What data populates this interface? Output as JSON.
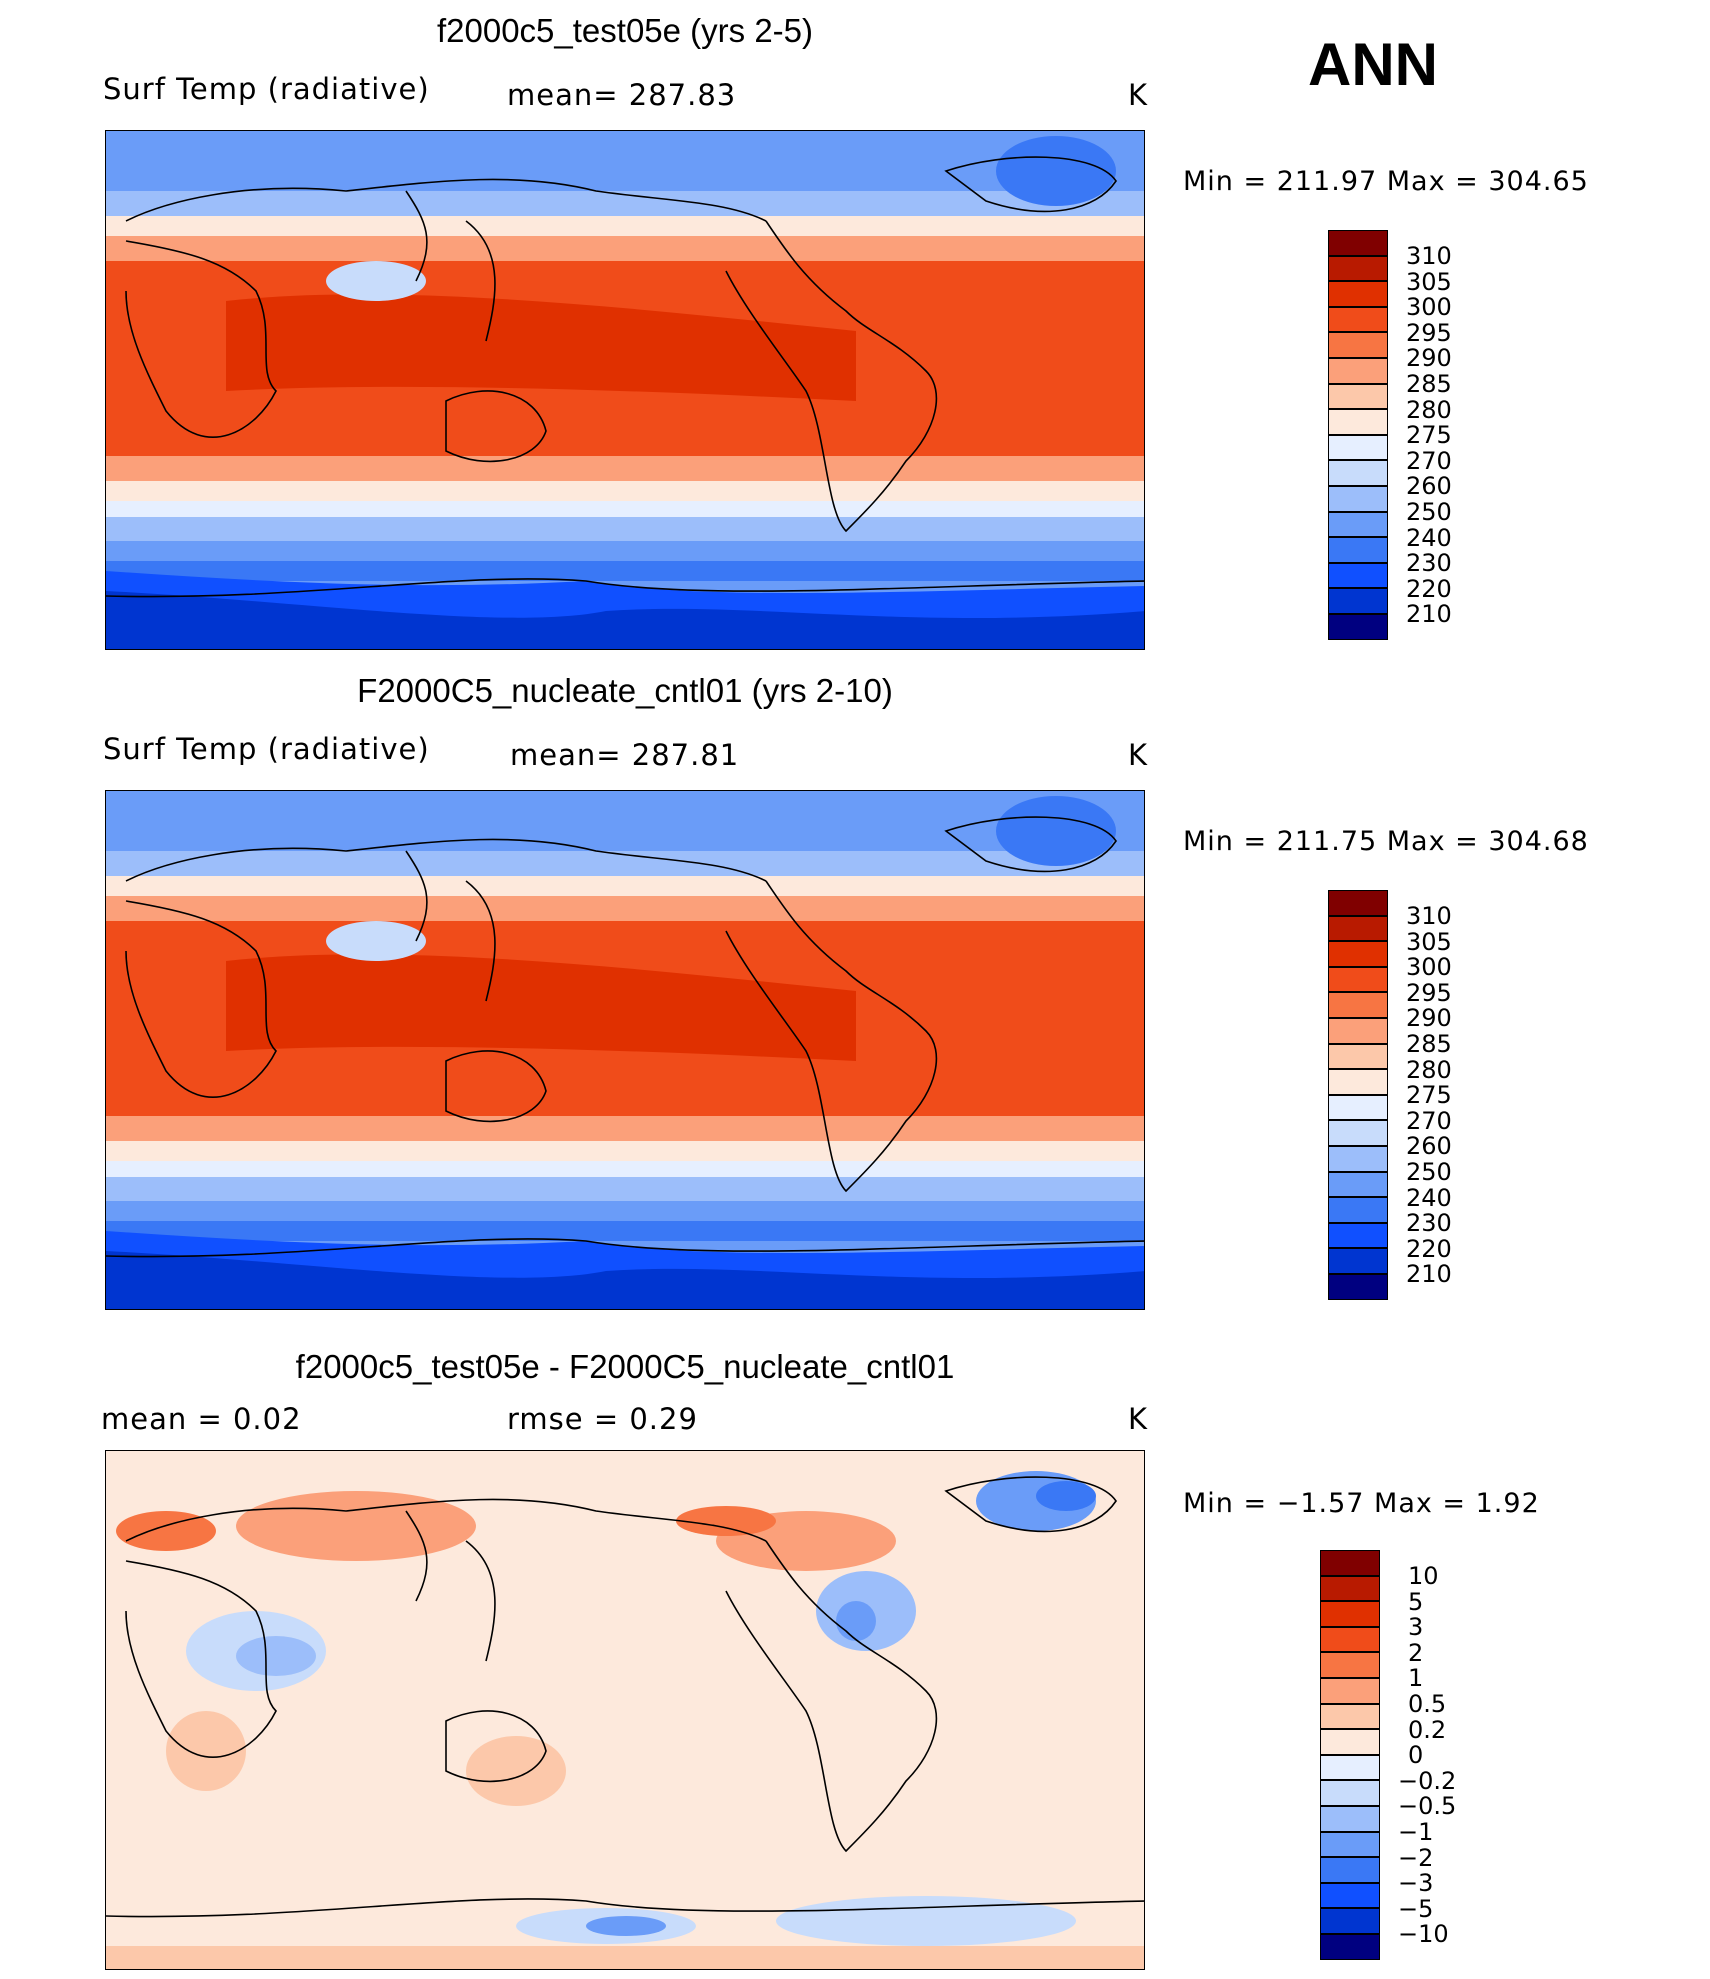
{
  "season": "ANN",
  "panels": [
    {
      "title": "f2000c5_test05e (yrs 2-5)",
      "left_label": "Surf Temp (radiative)",
      "center_label": "mean=  287.83",
      "units": "K",
      "minmax": "Min  =  211.97  Max  =  304.65",
      "colorbar_levels": [
        "310",
        "305",
        "300",
        "295",
        "290",
        "285",
        "280",
        "275",
        "270",
        "260",
        "250",
        "240",
        "230",
        "220",
        "210"
      ]
    },
    {
      "title": "F2000C5_nucleate_cntl01 (yrs 2-10)",
      "left_label": "Surf Temp (radiative)",
      "center_label": "mean=  287.81",
      "units": "K",
      "minmax": "Min  =  211.75  Max  =  304.68",
      "colorbar_levels": [
        "310",
        "305",
        "300",
        "295",
        "290",
        "285",
        "280",
        "275",
        "270",
        "260",
        "250",
        "240",
        "230",
        "220",
        "210"
      ]
    },
    {
      "title": "f2000c5_test05e - F2000C5_nucleate_cntl01",
      "left_label": "mean  =      0.02",
      "center_label": "rmse  =      0.29",
      "units": "K",
      "minmax": "Min  =     −1.57  Max  =       1.92",
      "colorbar_levels": [
        "10",
        "5",
        "3",
        "2",
        "1",
        "0.5",
        "0.2",
        "0",
        "−0.2",
        "−0.5",
        "−1",
        "−2",
        "−3",
        "−5",
        "−10"
      ]
    }
  ],
  "colors": {
    "temp_palette": [
      "#000080",
      "#0020a8",
      "#0035d0",
      "#1050ff",
      "#3a78f5",
      "#6a9cf8",
      "#9cbefa",
      "#c8dcfb",
      "#e6efff",
      "#fde9dc",
      "#fcc8aa",
      "#fba07a",
      "#f77543",
      "#f04c1a",
      "#e03000",
      "#b81a00",
      "#800000"
    ],
    "diff_palette": [
      "#000080",
      "#0020a8",
      "#0035d0",
      "#1050ff",
      "#3a78f5",
      "#6a9cf8",
      "#9cbefa",
      "#c8dcfb",
      "#e6efff",
      "#fde9dc",
      "#fcc8aa",
      "#fba07a",
      "#f77543",
      "#f04c1a",
      "#e03000",
      "#b81a00",
      "#800000"
    ]
  }
}
